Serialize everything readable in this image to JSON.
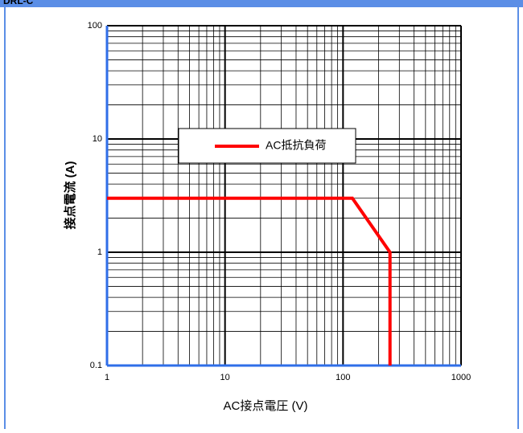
{
  "header": "DRL-C",
  "chart_data": {
    "type": "line",
    "xlabel": "AC接点電圧 (V)",
    "ylabel": "接点電流 (A)",
    "xscale": "log",
    "yscale": "log",
    "xlim": [
      1,
      1000
    ],
    "ylim": [
      0.1,
      100
    ],
    "xticks": [
      1,
      10,
      100,
      1000
    ],
    "yticks": [
      0.1,
      1,
      10,
      100
    ],
    "grid": true,
    "minor_grid": true,
    "legend": "center",
    "series": [
      {
        "name": "AC抵抗負荷",
        "color": "#ff0000",
        "x": [
          1,
          120,
          250,
          250
        ],
        "values": [
          3,
          3,
          1,
          0.1
        ]
      }
    ]
  }
}
